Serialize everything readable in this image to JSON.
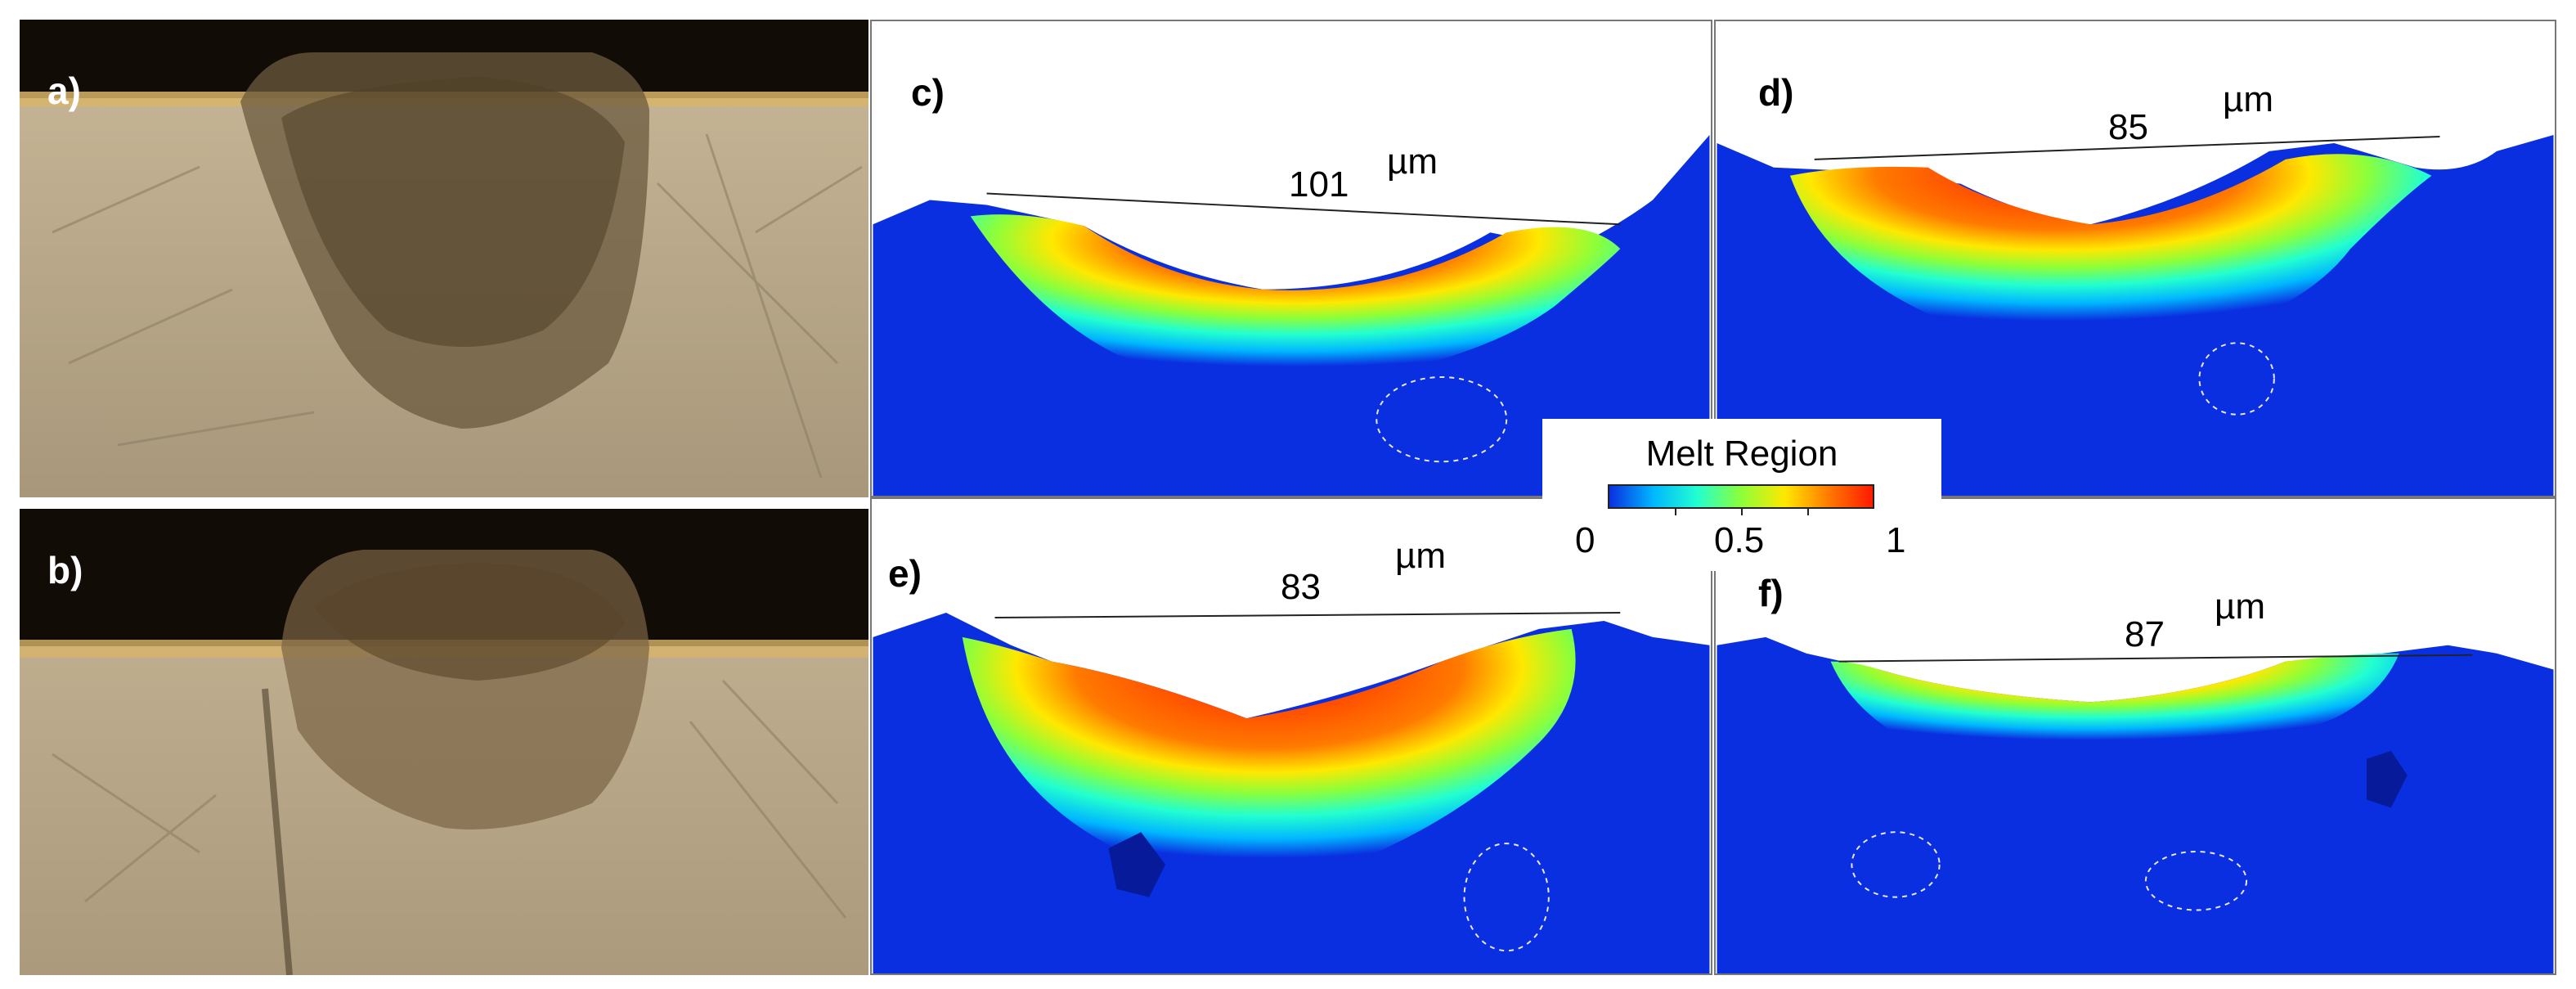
{
  "panels": [
    {
      "id": "a",
      "label": "a)"
    },
    {
      "id": "b",
      "label": "b)"
    },
    {
      "id": "c",
      "label": "c)",
      "width_value": "101",
      "unit": "µm"
    },
    {
      "id": "d",
      "label": "d)",
      "width_value": "85",
      "unit": "µm"
    },
    {
      "id": "e",
      "label": "e)",
      "width_value": "83",
      "unit": "µm"
    },
    {
      "id": "f",
      "label": "f)",
      "width_value": "87",
      "unit": "µm"
    }
  ],
  "legend": {
    "title": "Melt Region",
    "ticks": [
      "0",
      "0.5",
      "1"
    ],
    "colormap": [
      "#0a2fe0",
      "#00b7ff",
      "#22ffd0",
      "#8cff3a",
      "#ffe800",
      "#ff7a00",
      "#ff1a00"
    ]
  },
  "colors": {
    "substrate": "#0a2fe0",
    "micrograph_base": "#b9a888",
    "micrograph_dark": "#120c06"
  }
}
